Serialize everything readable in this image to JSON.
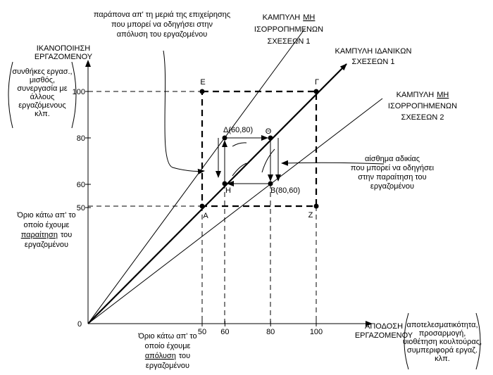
{
  "axes": {
    "y_title": [
      "ΙΚΑΝΟΠΟΙΗΣΗ",
      "ΕΡΓΑΖΟΜΕΝΟΥ"
    ],
    "y_note": [
      "συνθήκες εργασ.,",
      "μισθός,",
      "συνεργασία με",
      "άλλους",
      "εργαζόμενους",
      "κλπ."
    ],
    "x_title": [
      "ΑΠΟΔΟΣΗ",
      "ΕΡΓΑΖΟΜΕΝΟΥ"
    ],
    "x_note": [
      "αποτελεσματικότητα,",
      "προσαρμογή,",
      "υιοθέτηση κουλτούρας,",
      "συμπεριφορά εργαζ.",
      "κλπ."
    ],
    "origin": 0,
    "y_ticks": [
      100,
      80,
      60,
      50
    ],
    "x_ticks": [
      50,
      60,
      80,
      100
    ]
  },
  "points": [
    "Ε",
    "Γ",
    "Δ(60,80)",
    "Θ",
    "Η",
    "Β(80,60)",
    "Α",
    "Ζ"
  ],
  "curves": [
    {
      "lines": [
        [
          {
            "text": "ΚΑΜΠΥΛΗ"
          },
          {
            "text": "ΜΗ",
            "underline": true
          }
        ],
        [
          {
            "text": "ΙΣΟΡΡΟΠΗΜΕΝΩΝ"
          }
        ],
        [
          {
            "text": "ΣΧΕΣΕΩΝ 1"
          }
        ]
      ]
    },
    {
      "lines": [
        [
          {
            "text": "ΚΑΜΠΥΛΗ ΙΔΑΝΙΚΩΝ"
          }
        ],
        [
          {
            "text": "ΣΧΕΣΕΩΝ 1"
          }
        ]
      ]
    },
    {
      "lines": [
        [
          {
            "text": "ΚΑΜΠΥΛΗ"
          },
          {
            "text": "ΜΗ",
            "underline": true
          }
        ],
        [
          {
            "text": "ΙΣΟΡΡΟΠΗΜΕΝΩΝ"
          }
        ],
        [
          {
            "text": "ΣΧΕΣΕΩΝ 2"
          }
        ]
      ]
    }
  ],
  "annotations": {
    "complaints": [
      "παράπονα απ' τη μεριά της επιχείρησης",
      "που μπορεί να οδηγήσει στην",
      "απόλυση του εργαζομένου"
    ],
    "injustice": [
      "αίσθημα αδικίας",
      "που μπορεί να οδηγήσει",
      "στην παραίτηση του",
      "εργαζομένου"
    ],
    "resign_limit": [
      [
        {
          "text": "Όριο κάτω απ' το"
        }
      ],
      [
        {
          "text": "οποίο έχουμε"
        }
      ],
      [
        {
          "text": "παραίτηση",
          "underline": true
        },
        {
          "text": "του"
        }
      ],
      [
        {
          "text": "εργαζομένου"
        }
      ]
    ],
    "dismiss_limit": [
      [
        {
          "text": "Όριο κάτω απ' το"
        }
      ],
      [
        {
          "text": "οποίο έχουμε"
        }
      ],
      [
        {
          "text": "απόλυση",
          "underline": true
        },
        {
          "text": "του"
        }
      ],
      [
        {
          "text": "εργαζομένου"
        }
      ]
    ]
  }
}
